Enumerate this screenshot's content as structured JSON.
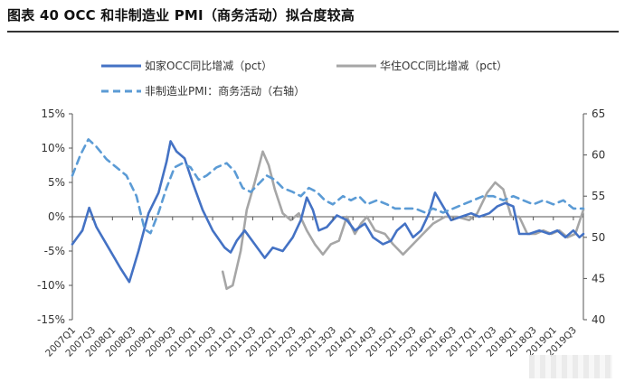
{
  "header": {
    "title": "图表 40 OCC 和非制造业 PMI（商务活动）拟合度较高"
  },
  "chart_data": {
    "type": "line",
    "title": "图表 40 OCC 和非制造业 PMI（商务活动）拟合度较高",
    "x_labels": [
      "2007Q1",
      "2007Q3",
      "2008Q1",
      "2008Q3",
      "2009Q1",
      "2009Q3",
      "2010Q1",
      "2010Q3",
      "2011Q1",
      "2011Q3",
      "2012Q1",
      "2012Q3",
      "2013Q1",
      "2013Q3",
      "2014Q1",
      "2014Q3",
      "2015Q1",
      "2015Q3",
      "2016Q1",
      "2016Q3",
      "2017Q1",
      "2017Q3",
      "2018Q1",
      "2018Q3",
      "2019Q1",
      "2019Q3"
    ],
    "x_range": [
      2007.0,
      2019.75
    ],
    "left_axis": {
      "ylim": [
        -15,
        15
      ],
      "ticks": [
        "15%",
        "10%",
        "5%",
        "0%",
        "-5%",
        "-10%",
        "-15%"
      ],
      "tick_values": [
        15,
        10,
        5,
        0,
        -5,
        -10,
        -15
      ]
    },
    "right_axis": {
      "ylim": [
        40,
        65
      ],
      "ticks": [
        "65",
        "60",
        "55",
        "50",
        "45",
        "40"
      ],
      "tick_values": [
        65,
        60,
        55,
        50,
        45,
        40
      ]
    },
    "legend_position": "top",
    "series": [
      {
        "name": "如家OCC同比增减（pct）",
        "axis": "left",
        "style": "solid",
        "color": "#4472c4",
        "points": [
          [
            2007.0,
            -4.0
          ],
          [
            2007.25,
            -2.0
          ],
          [
            2007.42,
            1.3
          ],
          [
            2007.6,
            -1.5
          ],
          [
            2007.9,
            -4.5
          ],
          [
            2008.2,
            -7.5
          ],
          [
            2008.42,
            -9.5
          ],
          [
            2008.65,
            -5.0
          ],
          [
            2008.9,
            0.5
          ],
          [
            2009.15,
            3.5
          ],
          [
            2009.35,
            8.0
          ],
          [
            2009.45,
            11.0
          ],
          [
            2009.6,
            9.5
          ],
          [
            2009.8,
            8.5
          ],
          [
            2010.0,
            5.0
          ],
          [
            2010.25,
            1.0
          ],
          [
            2010.5,
            -2.0
          ],
          [
            2010.8,
            -4.5
          ],
          [
            2010.95,
            -5.2
          ],
          [
            2011.1,
            -3.5
          ],
          [
            2011.3,
            -2.0
          ],
          [
            2011.55,
            -4.0
          ],
          [
            2011.8,
            -6.0
          ],
          [
            2012.0,
            -4.5
          ],
          [
            2012.25,
            -5.0
          ],
          [
            2012.5,
            -3.0
          ],
          [
            2012.7,
            -0.5
          ],
          [
            2012.85,
            2.8
          ],
          [
            2013.0,
            1.0
          ],
          [
            2013.15,
            -2.0
          ],
          [
            2013.35,
            -1.5
          ],
          [
            2013.6,
            0.2
          ],
          [
            2013.85,
            -0.5
          ],
          [
            2014.05,
            -2.0
          ],
          [
            2014.3,
            -1.0
          ],
          [
            2014.5,
            -3.0
          ],
          [
            2014.75,
            -4.0
          ],
          [
            2014.95,
            -3.5
          ],
          [
            2015.1,
            -2.0
          ],
          [
            2015.3,
            -1.0
          ],
          [
            2015.5,
            -3.0
          ],
          [
            2015.7,
            -2.0
          ],
          [
            2015.9,
            0.5
          ],
          [
            2016.05,
            3.5
          ],
          [
            2016.2,
            2.0
          ],
          [
            2016.45,
            -0.5
          ],
          [
            2016.7,
            0.0
          ],
          [
            2016.95,
            0.5
          ],
          [
            2017.15,
            0.0
          ],
          [
            2017.4,
            0.5
          ],
          [
            2017.6,
            1.5
          ],
          [
            2017.8,
            2.0
          ],
          [
            2018.0,
            1.5
          ],
          [
            2018.15,
            -2.5
          ],
          [
            2018.4,
            -2.5
          ],
          [
            2018.65,
            -2.0
          ],
          [
            2018.9,
            -2.5
          ],
          [
            2019.1,
            -2.0
          ],
          [
            2019.3,
            -3.0
          ],
          [
            2019.5,
            -2.0
          ],
          [
            2019.65,
            -3.0
          ],
          [
            2019.75,
            -2.5
          ]
        ]
      },
      {
        "name": "华住OCC同比增减（pct）",
        "axis": "left",
        "style": "solid",
        "color": "#a6a6a6",
        "points": [
          [
            2010.75,
            -8.0
          ],
          [
            2010.85,
            -10.5
          ],
          [
            2011.0,
            -10.0
          ],
          [
            2011.2,
            -5.0
          ],
          [
            2011.35,
            1.0
          ],
          [
            2011.55,
            5.0
          ],
          [
            2011.75,
            9.5
          ],
          [
            2011.9,
            7.5
          ],
          [
            2012.05,
            4.0
          ],
          [
            2012.25,
            0.5
          ],
          [
            2012.45,
            -0.5
          ],
          [
            2012.65,
            0.5
          ],
          [
            2012.85,
            -2.0
          ],
          [
            2013.05,
            -4.0
          ],
          [
            2013.25,
            -5.5
          ],
          [
            2013.45,
            -4.0
          ],
          [
            2013.65,
            -3.5
          ],
          [
            2013.85,
            0.0
          ],
          [
            2014.05,
            -2.5
          ],
          [
            2014.2,
            -1.0
          ],
          [
            2014.35,
            0.0
          ],
          [
            2014.55,
            -2.0
          ],
          [
            2014.8,
            -2.5
          ],
          [
            2015.0,
            -4.0
          ],
          [
            2015.25,
            -5.5
          ],
          [
            2015.5,
            -4.0
          ],
          [
            2015.75,
            -2.5
          ],
          [
            2016.0,
            -1.0
          ],
          [
            2016.3,
            0.0
          ],
          [
            2016.6,
            0.0
          ],
          [
            2016.9,
            -0.5
          ],
          [
            2017.1,
            0.5
          ],
          [
            2017.35,
            3.5
          ],
          [
            2017.55,
            5.0
          ],
          [
            2017.75,
            4.0
          ],
          [
            2017.95,
            0.0
          ],
          [
            2018.15,
            0.0
          ],
          [
            2018.35,
            -2.5
          ],
          [
            2018.55,
            -2.5
          ],
          [
            2018.75,
            -2.0
          ],
          [
            2018.95,
            -2.5
          ],
          [
            2019.15,
            -2.0
          ],
          [
            2019.35,
            -3.0
          ],
          [
            2019.55,
            -2.5
          ],
          [
            2019.75,
            1.0
          ]
        ]
      },
      {
        "name": "非制造业PMI：商务活动（右轴）",
        "axis": "right",
        "style": "dashed",
        "color": "#5b9bd5",
        "points": [
          [
            2007.0,
            57.5
          ],
          [
            2007.2,
            60.0
          ],
          [
            2007.4,
            61.9
          ],
          [
            2007.6,
            61.0
          ],
          [
            2007.85,
            59.5
          ],
          [
            2008.1,
            58.5
          ],
          [
            2008.35,
            57.5
          ],
          [
            2008.6,
            55.0
          ],
          [
            2008.8,
            51.0
          ],
          [
            2008.95,
            50.5
          ],
          [
            2009.15,
            53.0
          ],
          [
            2009.35,
            56.0
          ],
          [
            2009.55,
            58.5
          ],
          [
            2009.75,
            59.0
          ],
          [
            2009.95,
            58.5
          ],
          [
            2010.15,
            57.0
          ],
          [
            2010.35,
            57.5
          ],
          [
            2010.6,
            58.5
          ],
          [
            2010.85,
            59.0
          ],
          [
            2011.05,
            58.0
          ],
          [
            2011.25,
            56.0
          ],
          [
            2011.45,
            55.5
          ],
          [
            2011.65,
            56.5
          ],
          [
            2011.85,
            57.5
          ],
          [
            2012.05,
            57.0
          ],
          [
            2012.25,
            56.0
          ],
          [
            2012.5,
            55.5
          ],
          [
            2012.7,
            55.0
          ],
          [
            2012.9,
            56.0
          ],
          [
            2013.1,
            55.5
          ],
          [
            2013.3,
            54.5
          ],
          [
            2013.5,
            54.0
          ],
          [
            2013.75,
            55.0
          ],
          [
            2013.95,
            54.5
          ],
          [
            2014.15,
            55.0
          ],
          [
            2014.35,
            54.0
          ],
          [
            2014.6,
            54.5
          ],
          [
            2014.85,
            54.0
          ],
          [
            2015.05,
            53.5
          ],
          [
            2015.3,
            53.5
          ],
          [
            2015.55,
            53.5
          ],
          [
            2015.8,
            53.0
          ],
          [
            2016.0,
            53.5
          ],
          [
            2016.25,
            53.0
          ],
          [
            2016.5,
            53.5
          ],
          [
            2016.75,
            54.0
          ],
          [
            2017.0,
            54.5
          ],
          [
            2017.25,
            55.0
          ],
          [
            2017.5,
            55.0
          ],
          [
            2017.75,
            54.5
          ],
          [
            2018.0,
            55.0
          ],
          [
            2018.25,
            54.5
          ],
          [
            2018.5,
            54.0
          ],
          [
            2018.75,
            54.5
          ],
          [
            2019.0,
            54.0
          ],
          [
            2019.25,
            54.5
          ],
          [
            2019.5,
            53.5
          ],
          [
            2019.75,
            53.5
          ]
        ]
      }
    ]
  }
}
